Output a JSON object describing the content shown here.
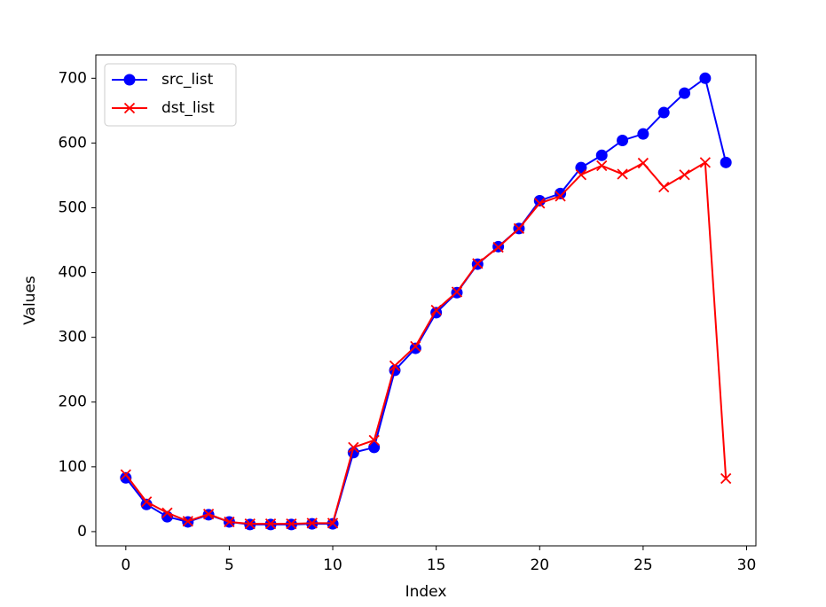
{
  "chart_data": {
    "type": "line",
    "xlabel": "Index",
    "ylabel": "Values",
    "x": [
      0,
      1,
      2,
      3,
      4,
      5,
      6,
      7,
      8,
      9,
      10,
      11,
      12,
      13,
      14,
      15,
      16,
      17,
      18,
      19,
      20,
      21,
      22,
      23,
      24,
      25,
      26,
      27,
      28,
      29
    ],
    "series": [
      {
        "name": "src_list",
        "color": "#0000ff",
        "marker": "o",
        "values": [
          83,
          42,
          23,
          15,
          26,
          15,
          11,
          11,
          11,
          12,
          12,
          122,
          130,
          249,
          283,
          338,
          369,
          413,
          440,
          468,
          511,
          522,
          562,
          581,
          604,
          614,
          647,
          677,
          700,
          570
        ]
      },
      {
        "name": "dst_list",
        "color": "#ff0000",
        "marker": "x",
        "values": [
          88,
          46,
          29,
          16,
          27,
          15,
          12,
          12,
          12,
          13,
          13,
          130,
          141,
          256,
          286,
          342,
          370,
          414,
          439,
          468,
          507,
          518,
          551,
          565,
          552,
          569,
          532,
          551,
          570,
          82
        ]
      }
    ],
    "xlim": [
      -1.45,
      30.45
    ],
    "xticks": [
      0,
      5,
      10,
      15,
      20,
      25,
      30
    ],
    "ylim": [
      -22,
      736
    ],
    "yticks": [
      0,
      100,
      200,
      300,
      400,
      500,
      600,
      700
    ],
    "legend": "upper left"
  }
}
